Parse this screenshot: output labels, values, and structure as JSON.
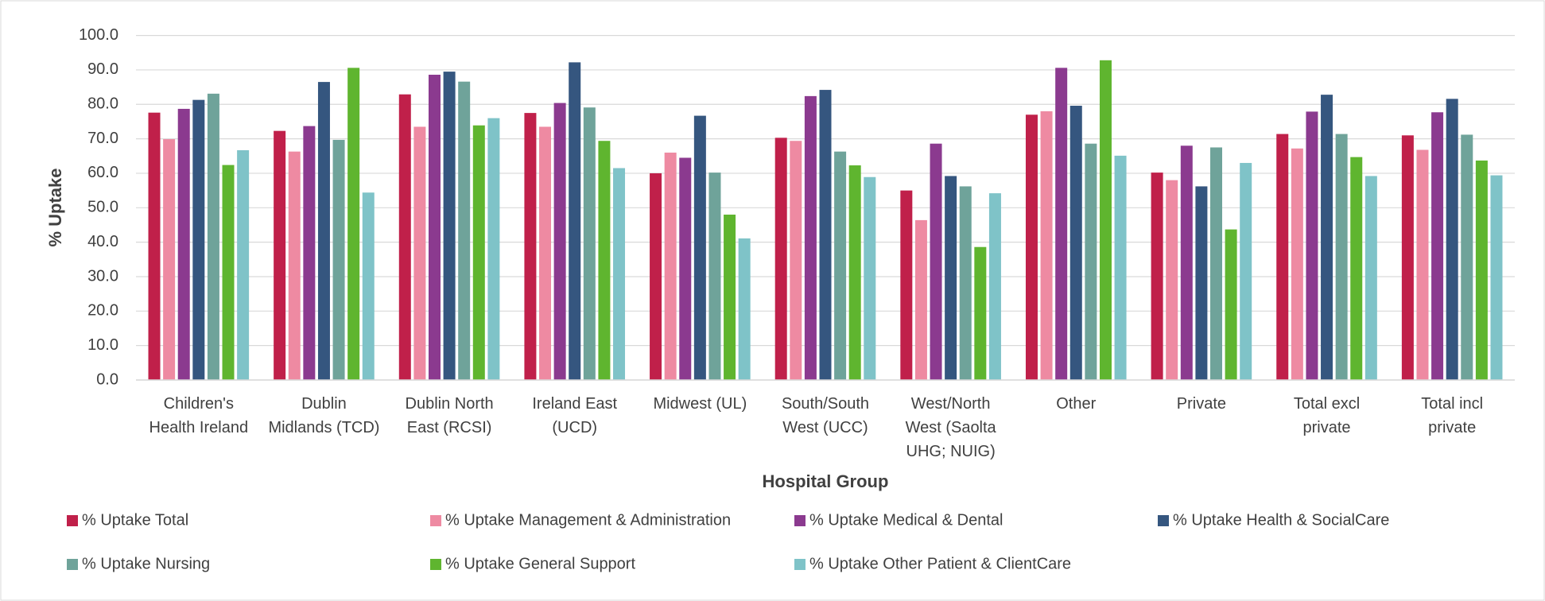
{
  "chart_data": {
    "type": "bar",
    "x_label": "Hospital Group",
    "y_label": "% Uptake",
    "categories": [
      "Children's Health Ireland",
      "Dublin Midlands (TCD)",
      "Dublin North East (RCSI)",
      "Ireland East (UCD)",
      "Midwest (UL)",
      "South/South West (UCC)",
      "West/North West (Saolta UHG; NUIG)",
      "Other",
      "Private",
      "Total excl private",
      "Total incl private"
    ],
    "series": [
      {
        "name": "% Uptake Total",
        "color": "#c0204a",
        "values": [
          77.6,
          72.3,
          82.9,
          77.5,
          60.0,
          70.3,
          55.0,
          77.0,
          60.2,
          71.4,
          71.0
        ]
      },
      {
        "name": "% Uptake Management & Administration",
        "color": "#ee8aa2",
        "values": [
          69.9,
          66.3,
          73.5,
          73.5,
          66.0,
          69.4,
          46.4,
          78.0,
          58.0,
          67.2,
          66.8
        ]
      },
      {
        "name": "% Uptake Medical & Dental",
        "color": "#8b3a8f",
        "values": [
          78.7,
          73.7,
          88.6,
          80.4,
          64.5,
          82.4,
          68.6,
          90.6,
          68.0,
          77.9,
          77.7
        ]
      },
      {
        "name": "% Uptake Health & SocialCare",
        "color": "#35567f",
        "values": [
          81.3,
          86.5,
          89.5,
          92.2,
          76.7,
          84.2,
          59.2,
          79.6,
          56.2,
          82.8,
          81.6
        ]
      },
      {
        "name": "% Uptake Nursing",
        "color": "#6fa39a",
        "values": [
          83.1,
          69.7,
          86.6,
          79.1,
          60.2,
          66.3,
          56.2,
          68.6,
          67.5,
          71.4,
          71.2
        ]
      },
      {
        "name": "% Uptake General Support",
        "color": "#5fb52f",
        "values": [
          62.4,
          90.6,
          73.9,
          69.4,
          48.0,
          62.3,
          38.6,
          92.8,
          43.7,
          64.7,
          63.7
        ]
      },
      {
        "name": "% Uptake Other Patient & ClientCare",
        "color": "#7fc3c8",
        "values": [
          66.7,
          54.4,
          76.0,
          61.5,
          41.1,
          58.9,
          54.2,
          65.1,
          63.0,
          59.2,
          59.4
        ]
      }
    ],
    "ylim": [
      0,
      100
    ],
    "yticks": [
      {
        "value": 0,
        "label": "0.0"
      },
      {
        "value": 10,
        "label": "10.0"
      },
      {
        "value": 20,
        "label": "20.0"
      },
      {
        "value": 30,
        "label": "30.0"
      },
      {
        "value": 40,
        "label": "40.0"
      },
      {
        "value": 50,
        "label": "50.0"
      },
      {
        "value": 60,
        "label": "60.0"
      },
      {
        "value": 70,
        "label": "70.0"
      },
      {
        "value": 80,
        "label": "80.0"
      },
      {
        "value": 90,
        "label": "90.0"
      },
      {
        "value": 100,
        "label": "100.0"
      }
    ],
    "grid": true,
    "legend": "bottom"
  }
}
